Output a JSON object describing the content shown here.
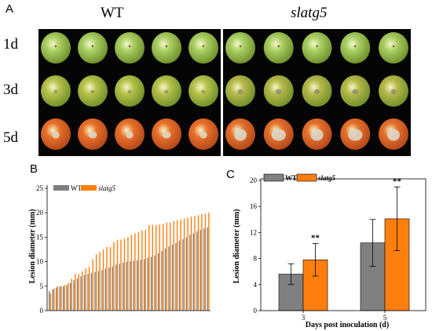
{
  "panel_a": {
    "letter": "A",
    "genotypes": [
      "WT",
      "slatg5"
    ],
    "days": [
      "1d",
      "3d",
      "5d"
    ],
    "fruit_rows": [
      {
        "day": "1d",
        "wt_color": "#a9cf63",
        "mut_color": "#a9cf63",
        "wt_lesion": 0.0,
        "mut_lesion": 0.0
      },
      {
        "day": "3d",
        "wt_color": "#b7c24a",
        "mut_color": "#b8b84a",
        "wt_lesion": 0.12,
        "mut_lesion": 0.18
      },
      {
        "day": "5d",
        "wt_color": "#e9712a",
        "mut_color": "#e5722c",
        "wt_lesion": 0.25,
        "mut_lesion": 0.42
      }
    ]
  },
  "panel_b": {
    "letter": "B",
    "legend": [
      "WT",
      "slatg5"
    ],
    "ylabel": "Lesion diameter (mm)",
    "yticks": [
      "0",
      "5",
      "10",
      "15",
      "20",
      "25"
    ]
  },
  "panel_c": {
    "letter": "C",
    "legend": [
      "WT",
      "slatg5"
    ],
    "ylabel": "Lesion diameter (mm)",
    "xlabel": "Days post inoculation (d)",
    "yticks": [
      "0",
      "4",
      "8",
      "12",
      "16",
      "20"
    ],
    "categories": [
      "3",
      "5"
    ],
    "significance": [
      "**",
      "**"
    ]
  },
  "colors": {
    "wt": "#808080",
    "mutant": "#ff7f0e"
  },
  "chart_data": [
    {
      "type": "bar",
      "panel": "B",
      "ylabel": "Lesion diameter (mm)",
      "ylim": [
        0,
        25
      ],
      "series": [
        {
          "name": "WT",
          "values": [
            4.0,
            4.3,
            4.7,
            4.9,
            5.0,
            5.2,
            5.6,
            6.2,
            6.6,
            7.0,
            7.3,
            7.5,
            7.7,
            7.9,
            8.1,
            8.3,
            8.6,
            8.8,
            9.0,
            9.4,
            9.6,
            9.8,
            10.0,
            10.1,
            10.2,
            10.3,
            10.4,
            10.5,
            10.8,
            11.0,
            11.3,
            11.7,
            12.2,
            12.7,
            13.1,
            13.5,
            13.8,
            14.3,
            14.6,
            15.0,
            15.5,
            15.8,
            16.2,
            16.5,
            16.8,
            17.0
          ]
        },
        {
          "name": "slatg5",
          "values": [
            3.5,
            4.5,
            5.0,
            5.0,
            5.2,
            5.6,
            6.5,
            7.5,
            7.5,
            8.0,
            8.6,
            9.0,
            10.5,
            11.5,
            12.0,
            12.5,
            13.0,
            13.0,
            14.0,
            14.5,
            14.5,
            14.7,
            15.0,
            15.5,
            15.8,
            16.0,
            16.4,
            16.5,
            17.5,
            17.5,
            17.5,
            17.6,
            17.7,
            18.0,
            18.0,
            18.3,
            18.5,
            18.6,
            18.8,
            19.0,
            19.2,
            19.3,
            19.5,
            19.7,
            19.8,
            20.0
          ]
        }
      ]
    },
    {
      "type": "bar",
      "panel": "C",
      "xlabel": "Days post inoculation (d)",
      "ylabel": "Lesion diameter (mm)",
      "categories": [
        "3",
        "5"
      ],
      "ylim": [
        0,
        20
      ],
      "series": [
        {
          "name": "WT",
          "values": [
            5.6,
            10.4
          ],
          "errors": [
            1.6,
            3.6
          ]
        },
        {
          "name": "slatg5",
          "values": [
            7.8,
            14.1
          ],
          "errors": [
            2.5,
            4.9
          ]
        }
      ]
    }
  ]
}
